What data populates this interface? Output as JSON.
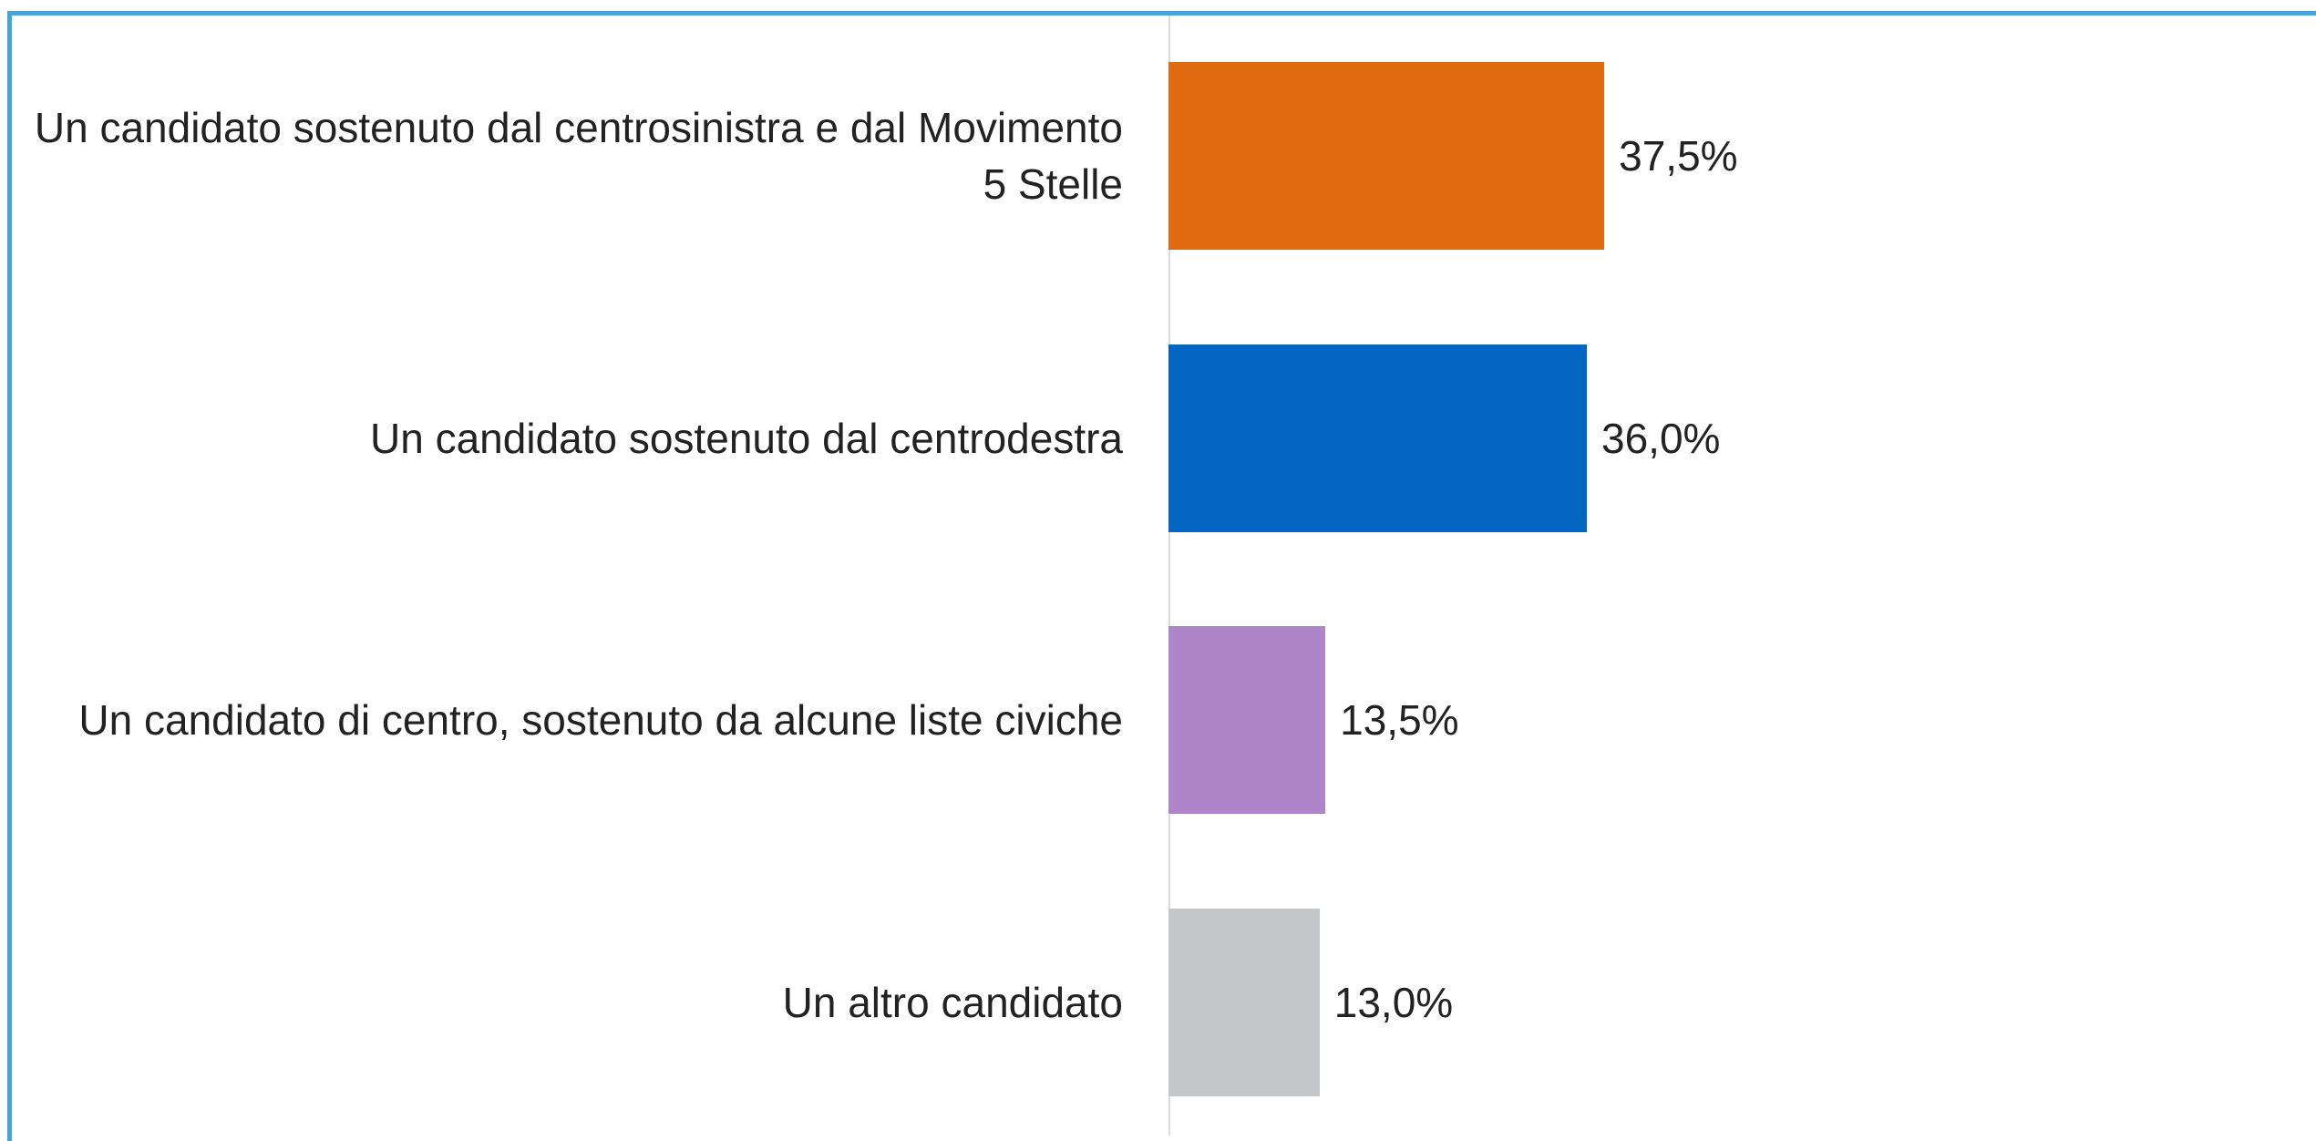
{
  "chart_data": {
    "type": "hbar",
    "categories": [
      "Un candidato sostenuto dal centrosinistra e dal Movimento 5 Stelle",
      "Un candidato sostenuto dal centrodestra",
      "Un candidato di centro, sostenuto da alcune liste civiche",
      "Un altro candidato"
    ],
    "values": [
      37.5,
      36.0,
      13.5,
      13.0
    ],
    "value_labels": [
      "37,5%",
      "36,0%",
      "13,5%",
      "13,0%"
    ],
    "colors": [
      "#df6a10",
      "#0466c2",
      "#ae85c9",
      "#c4c7c9"
    ]
  }
}
